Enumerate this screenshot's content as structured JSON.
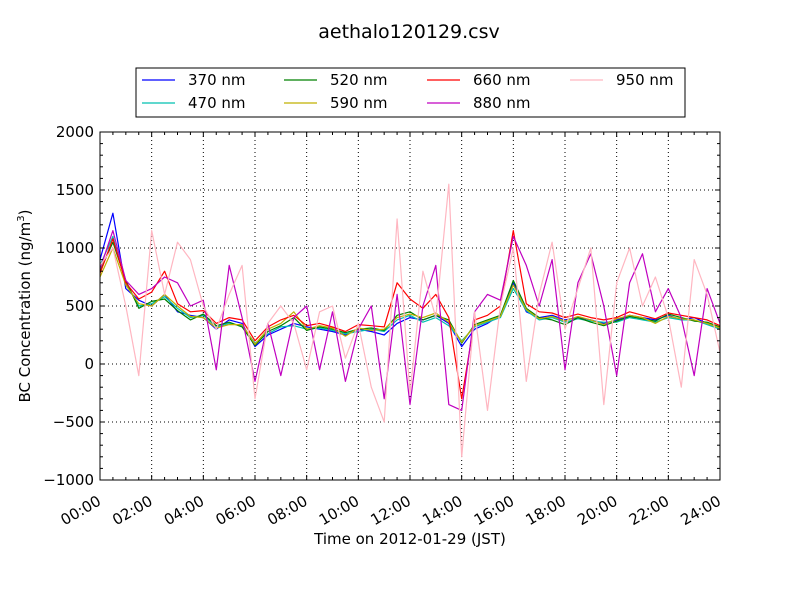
{
  "chart_data": {
    "type": "line",
    "title": "aethalo120129.csv",
    "xlabel": "Time on 2012-01-29 (JST)",
    "ylabel_main": "BC Concentration (ng/m",
    "ylabel_sup": "3",
    "ylabel_close": ")",
    "xlim": [
      "00:00",
      "24:00"
    ],
    "ylim": [
      -1000,
      2000
    ],
    "grid": true,
    "legend_position": "top",
    "x_ticks": [
      "00:00",
      "02:00",
      "04:00",
      "06:00",
      "08:00",
      "10:00",
      "12:00",
      "14:00",
      "16:00",
      "18:00",
      "20:00",
      "22:00",
      "24:00"
    ],
    "y_ticks": [
      "-1000",
      "-500",
      "0",
      "500",
      "1000",
      "1500",
      "2000"
    ],
    "y_tick_values": [
      -1000,
      -500,
      0,
      500,
      1000,
      1500,
      2000
    ],
    "x_hours": [
      0,
      0.5,
      1,
      1.5,
      2,
      2.5,
      3,
      3.5,
      4,
      4.5,
      5,
      5.5,
      6,
      6.5,
      7,
      7.5,
      8,
      8.5,
      9,
      9.5,
      10,
      10.5,
      11,
      11.5,
      12,
      12.5,
      13,
      13.5,
      14,
      14.5,
      15,
      15.5,
      16,
      16.5,
      17,
      17.5,
      18,
      18.5,
      19,
      19.5,
      20,
      20.5,
      21,
      21.5,
      22,
      22.5,
      23,
      23.5,
      24
    ],
    "series": [
      {
        "name": "370 nm",
        "color": "#0000ff",
        "values": [
          900,
          1300,
          650,
          550,
          500,
          600,
          450,
          420,
          400,
          300,
          380,
          350,
          150,
          250,
          300,
          350,
          320,
          300,
          280,
          250,
          300,
          280,
          250,
          350,
          400,
          380,
          420,
          350,
          150,
          300,
          350,
          420,
          700,
          450,
          400,
          420,
          380,
          400,
          380,
          350,
          380,
          420,
          400,
          380,
          420,
          380,
          400,
          350,
          300
        ]
      },
      {
        "name": "470 nm",
        "color": "#00c0b0",
        "values": [
          850,
          1100,
          700,
          500,
          520,
          580,
          480,
          400,
          420,
          320,
          350,
          330,
          180,
          260,
          320,
          330,
          300,
          310,
          290,
          260,
          280,
          300,
          280,
          380,
          420,
          360,
          400,
          330,
          200,
          320,
          360,
          400,
          650,
          460,
          380,
          400,
          360,
          390,
          370,
          360,
          360,
          400,
          380,
          360,
          400,
          380,
          380,
          340,
          300
        ]
      },
      {
        "name": "520 nm",
        "color": "#008000",
        "values": [
          800,
          1050,
          720,
          480,
          540,
          560,
          460,
          380,
          430,
          330,
          360,
          320,
          160,
          280,
          330,
          400,
          290,
          320,
          300,
          270,
          300,
          310,
          290,
          420,
          450,
          380,
          420,
          380,
          180,
          340,
          380,
          420,
          720,
          480,
          400,
          380,
          340,
          400,
          360,
          330,
          370,
          410,
          390,
          370,
          430,
          400,
          370,
          360,
          320
        ]
      },
      {
        "name": "590 nm",
        "color": "#c0b000",
        "values": [
          750,
          1000,
          680,
          520,
          500,
          600,
          500,
          410,
          400,
          310,
          340,
          340,
          170,
          300,
          350,
          450,
          300,
          330,
          310,
          240,
          310,
          290,
          300,
          400,
          430,
          400,
          440,
          360,
          190,
          330,
          370,
          410,
          680,
          470,
          390,
          410,
          370,
          410,
          380,
          340,
          390,
          420,
          400,
          350,
          410,
          390,
          380,
          350,
          310
        ]
      },
      {
        "name": "660 nm",
        "color": "#ff0000",
        "values": [
          780,
          1080,
          700,
          560,
          620,
          800,
          520,
          450,
          460,
          350,
          400,
          380,
          200,
          320,
          380,
          420,
          330,
          350,
          320,
          280,
          340,
          330,
          320,
          700,
          560,
          480,
          600,
          400,
          -300,
          380,
          420,
          500,
          1150,
          520,
          450,
          440,
          400,
          430,
          400,
          380,
          400,
          450,
          420,
          390,
          440,
          420,
          400,
          380,
          330
        ]
      },
      {
        "name": "880 nm",
        "color": "#c000c0",
        "values": [
          820,
          1150,
          720,
          600,
          650,
          750,
          700,
          500,
          550,
          -50,
          850,
          400,
          -150,
          350,
          -100,
          400,
          500,
          -50,
          450,
          -150,
          300,
          500,
          -300,
          600,
          -350,
          500,
          850,
          -350,
          -400,
          450,
          600,
          550,
          1100,
          850,
          500,
          900,
          -50,
          700,
          950,
          500,
          -100,
          700,
          950,
          450,
          650,
          400,
          -100,
          650,
          350
        ]
      },
      {
        "name": "950 nm",
        "color": "#ffb6c1",
        "values": [
          850,
          1000,
          500,
          -100,
          1150,
          600,
          1050,
          900,
          500,
          300,
          600,
          850,
          -300,
          350,
          500,
          350,
          -50,
          450,
          500,
          50,
          350,
          -200,
          -500,
          1250,
          -250,
          800,
          400,
          1550,
          -800,
          450,
          -400,
          500,
          1000,
          -150,
          600,
          1050,
          300,
          650,
          1000,
          -350,
          700,
          1000,
          500,
          750,
          400,
          -200,
          900,
          600,
          100
        ]
      }
    ]
  }
}
